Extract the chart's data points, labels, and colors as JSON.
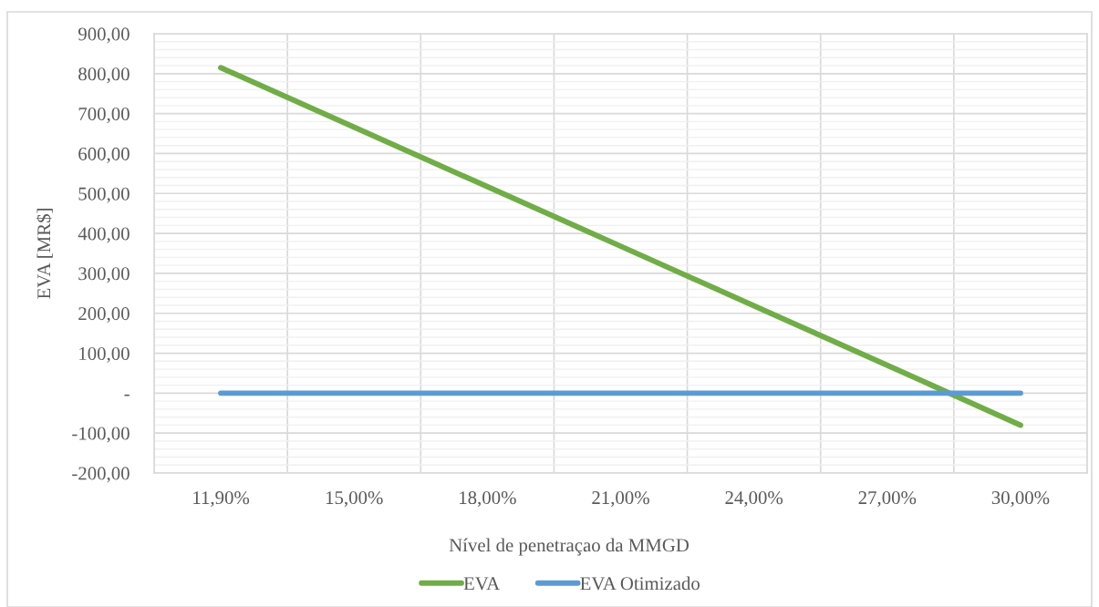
{
  "chart_data": {
    "type": "line",
    "xlabel": "Nível de penetraçao da MMGD",
    "ylabel": "EVA [MR$]",
    "categories": [
      "11,90%",
      "15,00%",
      "18,00%",
      "21,00%",
      "24,00%",
      "27,00%",
      "30,00%"
    ],
    "series": [
      {
        "name": "EVA",
        "color": "#70ad47",
        "values": [
          815,
          666,
          517,
          368,
          219,
          70,
          -80
        ]
      },
      {
        "name": "EVA Otimizado",
        "color": "#5b9bd5",
        "values": [
          0,
          0,
          0,
          0,
          0,
          0,
          0
        ]
      }
    ],
    "ylim": [
      -200,
      900
    ],
    "yticks": [
      {
        "value": -200,
        "label": "-200,00"
      },
      {
        "value": -100,
        "label": "-100,00"
      },
      {
        "value": 0,
        "label": "-"
      },
      {
        "value": 100,
        "label": "100,00"
      },
      {
        "value": 200,
        "label": "200,00"
      },
      {
        "value": 300,
        "label": "300,00"
      },
      {
        "value": 400,
        "label": "400,00"
      },
      {
        "value": 500,
        "label": "500,00"
      },
      {
        "value": 600,
        "label": "600,00"
      },
      {
        "value": 700,
        "label": "700,00"
      },
      {
        "value": 800,
        "label": "800,00"
      },
      {
        "value": 900,
        "label": "900,00"
      }
    ],
    "grid": true,
    "legend": "bottom",
    "marker": "none",
    "line_style": "solid"
  }
}
